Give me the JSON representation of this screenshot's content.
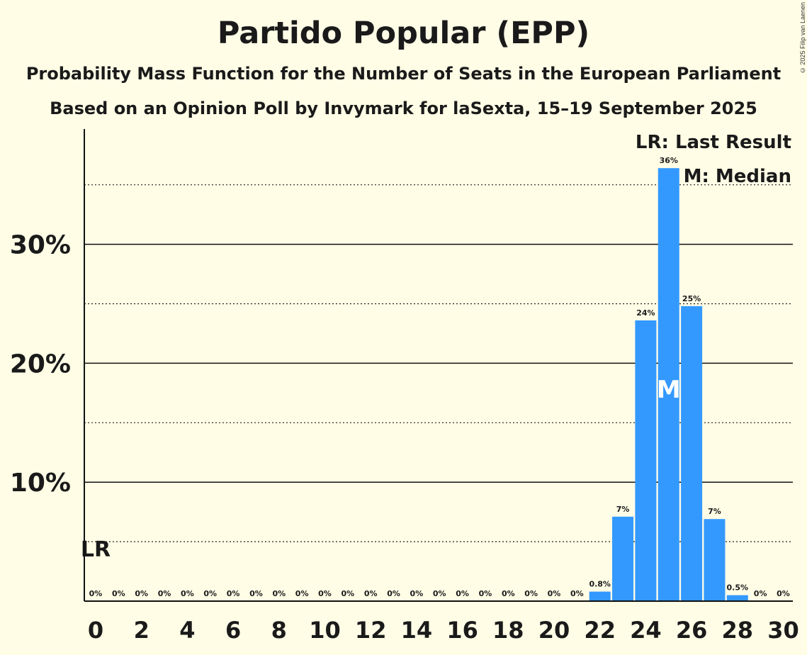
{
  "title": "Partido Popular (EPP)",
  "subtitle": "Probability Mass Function for the Number of Seats in the European Parliament",
  "source": "Based on an Opinion Poll by Invymark for laSexta, 15–19 September 2025",
  "copyright": "© 2025 Filip van Laenen",
  "legend": {
    "last_result": "LR: Last Result",
    "median": "M: Median"
  },
  "colors": {
    "bar": "#3399ff",
    "background": "#fffde6",
    "text": "#1a1a1a"
  },
  "chart_data": {
    "type": "bar",
    "categories": [
      0,
      1,
      2,
      3,
      4,
      5,
      6,
      7,
      8,
      9,
      10,
      11,
      12,
      13,
      14,
      15,
      16,
      17,
      18,
      19,
      20,
      21,
      22,
      23,
      24,
      25,
      26,
      27,
      28,
      29,
      30
    ],
    "values": [
      0,
      0,
      0,
      0,
      0,
      0,
      0,
      0,
      0,
      0,
      0,
      0,
      0,
      0,
      0,
      0,
      0,
      0,
      0,
      0,
      0,
      0,
      0.8,
      7.1,
      23.6,
      36.4,
      24.8,
      6.9,
      0.5,
      0,
      0
    ],
    "data_labels": [
      "0%",
      "0%",
      "0%",
      "0%",
      "0%",
      "0%",
      "0%",
      "0%",
      "0%",
      "0%",
      "0%",
      "0%",
      "0%",
      "0%",
      "0%",
      "0%",
      "0%",
      "0%",
      "0%",
      "0%",
      "0%",
      "0%",
      "0.8%",
      "7%",
      "24%",
      "36%",
      "25%",
      "7%",
      "0.5%",
      "0%",
      "0%"
    ],
    "x_tick_labels": [
      "0",
      "2",
      "4",
      "6",
      "8",
      "10",
      "12",
      "14",
      "16",
      "18",
      "20",
      "22",
      "24",
      "26",
      "28",
      "30"
    ],
    "y_tick_labels": [
      "10%",
      "20%",
      "30%"
    ],
    "ylim": [
      0,
      39.5
    ],
    "grid": "solid lines at 10% intervals, dotted lines at 5% offsets",
    "last_result": {
      "seat": 0,
      "label": "LR"
    },
    "median": {
      "seat": 25,
      "label": "M"
    },
    "legend_position": "top-right"
  }
}
